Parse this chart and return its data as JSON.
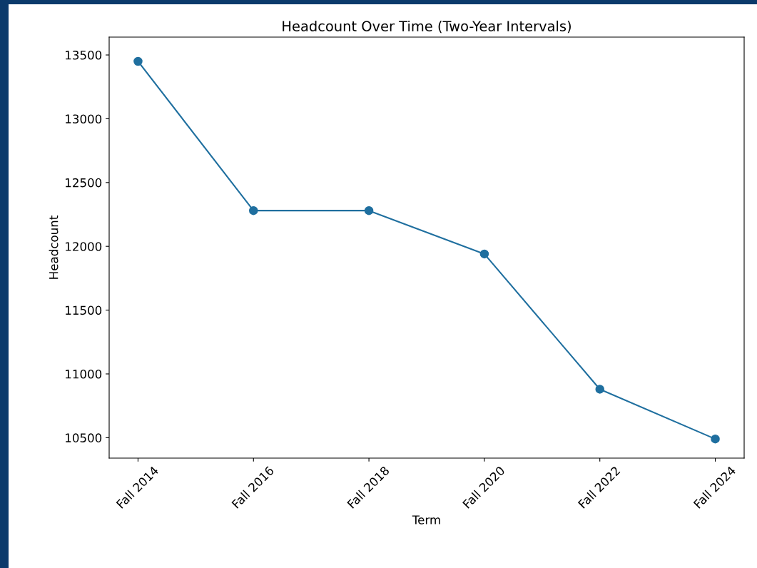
{
  "chart_data": {
    "type": "line",
    "title": "Headcount Over Time (Two-Year Intervals)",
    "xlabel": "Term",
    "ylabel": "Headcount",
    "categories": [
      "Fall 2014",
      "Fall 2016",
      "Fall 2018",
      "Fall 2020",
      "Fall 2022",
      "Fall 2024"
    ],
    "series": [
      {
        "color": "#1f6f9f",
        "values": [
          13450,
          12280,
          12280,
          11940,
          10880,
          10490
        ]
      }
    ],
    "ylim": [
      10340,
      13640
    ],
    "yticks": [
      10500,
      11000,
      11500,
      12000,
      12500,
      13000,
      13500
    ],
    "marker": "circle",
    "line_style": "solid",
    "grid": false,
    "legend": false
  }
}
